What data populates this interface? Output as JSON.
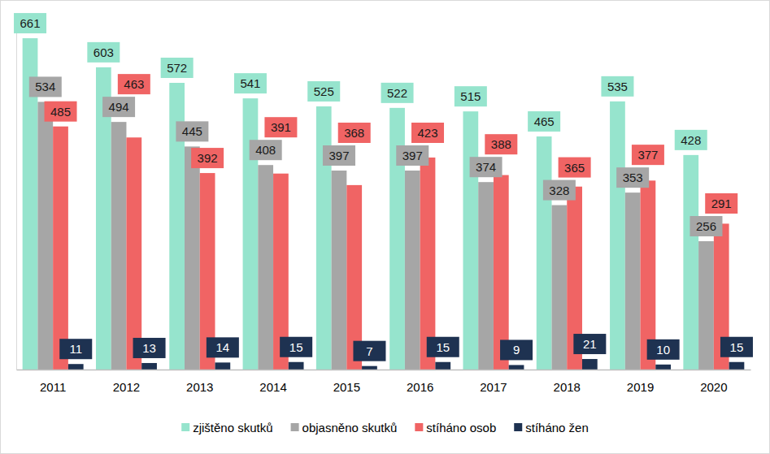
{
  "chart_data": {
    "type": "bar",
    "categories": [
      "2011",
      "2012",
      "2013",
      "2014",
      "2015",
      "2016",
      "2017",
      "2018",
      "2019",
      "2020"
    ],
    "series": [
      {
        "name": "zjištěno skutků",
        "color": "#96e4cd",
        "values": [
          661,
          603,
          572,
          541,
          525,
          522,
          515,
          465,
          535,
          428
        ]
      },
      {
        "name": "objasněno skutků",
        "color": "#a6a6a6",
        "values": [
          534,
          494,
          445,
          408,
          397,
          397,
          374,
          328,
          353,
          256
        ]
      },
      {
        "name": "stíháno osob",
        "color": "#f06464",
        "values": [
          485,
          463,
          392,
          391,
          368,
          423,
          388,
          365,
          377,
          291
        ]
      },
      {
        "name": "stíháno žen",
        "color": "#1e3251",
        "values": [
          11,
          13,
          14,
          15,
          7,
          15,
          9,
          21,
          10,
          15
        ]
      }
    ],
    "ylim": [
      0,
      700
    ],
    "data_labels": true,
    "tick_labels": "x",
    "legend": "bottom",
    "grid": false
  }
}
